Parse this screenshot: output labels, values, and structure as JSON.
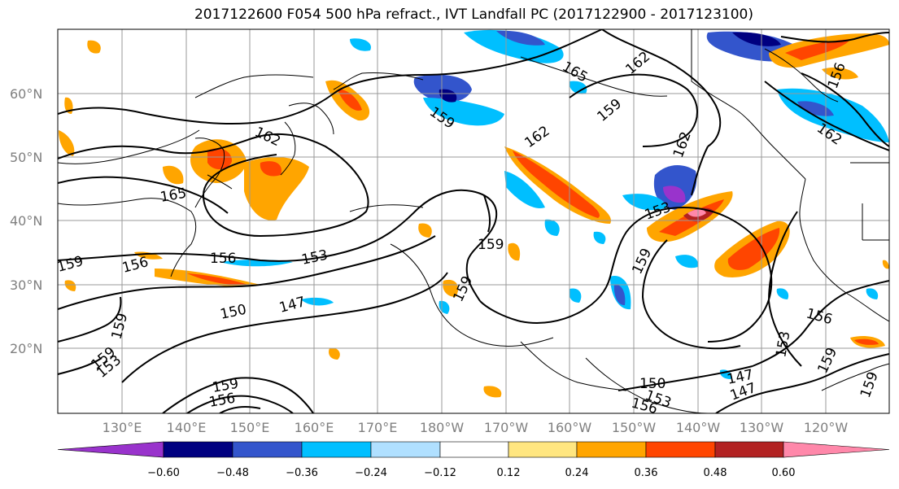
{
  "title": "2017122600 F054 500 hPa refract., IVT Landfall PC (2017122900 - 2017123100)",
  "lat_labels": [
    "60°N",
    "50°N",
    "40°N",
    "30°N",
    "20°N"
  ],
  "lon_labels": [
    "130°E",
    "140°E",
    "150°E",
    "160°E",
    "170°E",
    "180°W",
    "170°W",
    "160°W",
    "150°W",
    "140°W",
    "130°W",
    "120°W"
  ],
  "colorbar": {
    "colors": [
      "#9933cc",
      "#000080",
      "#3355cc",
      "#00bfff",
      "#b0e0ff",
      "#ffffff",
      "#ffe680",
      "#ffa500",
      "#ff4500",
      "#b22222",
      "#ff88aa"
    ],
    "tick_labels": [
      "−0.60",
      "−0.48",
      "−0.36",
      "−0.24",
      "−0.12",
      "0.12",
      "0.24",
      "0.36",
      "0.48",
      "0.60"
    ]
  },
  "contour_labels": [
    "165",
    "162",
    "159",
    "162",
    "162",
    "159",
    "162",
    "165",
    "162",
    "159",
    "159",
    "156",
    "153",
    "150",
    "147",
    "159",
    "156",
    "153",
    "159",
    "159",
    "153",
    "156",
    "159",
    "150",
    "153",
    "156",
    "147",
    "147",
    "153",
    "159",
    "156",
    "159",
    "159",
    "156"
  ]
}
